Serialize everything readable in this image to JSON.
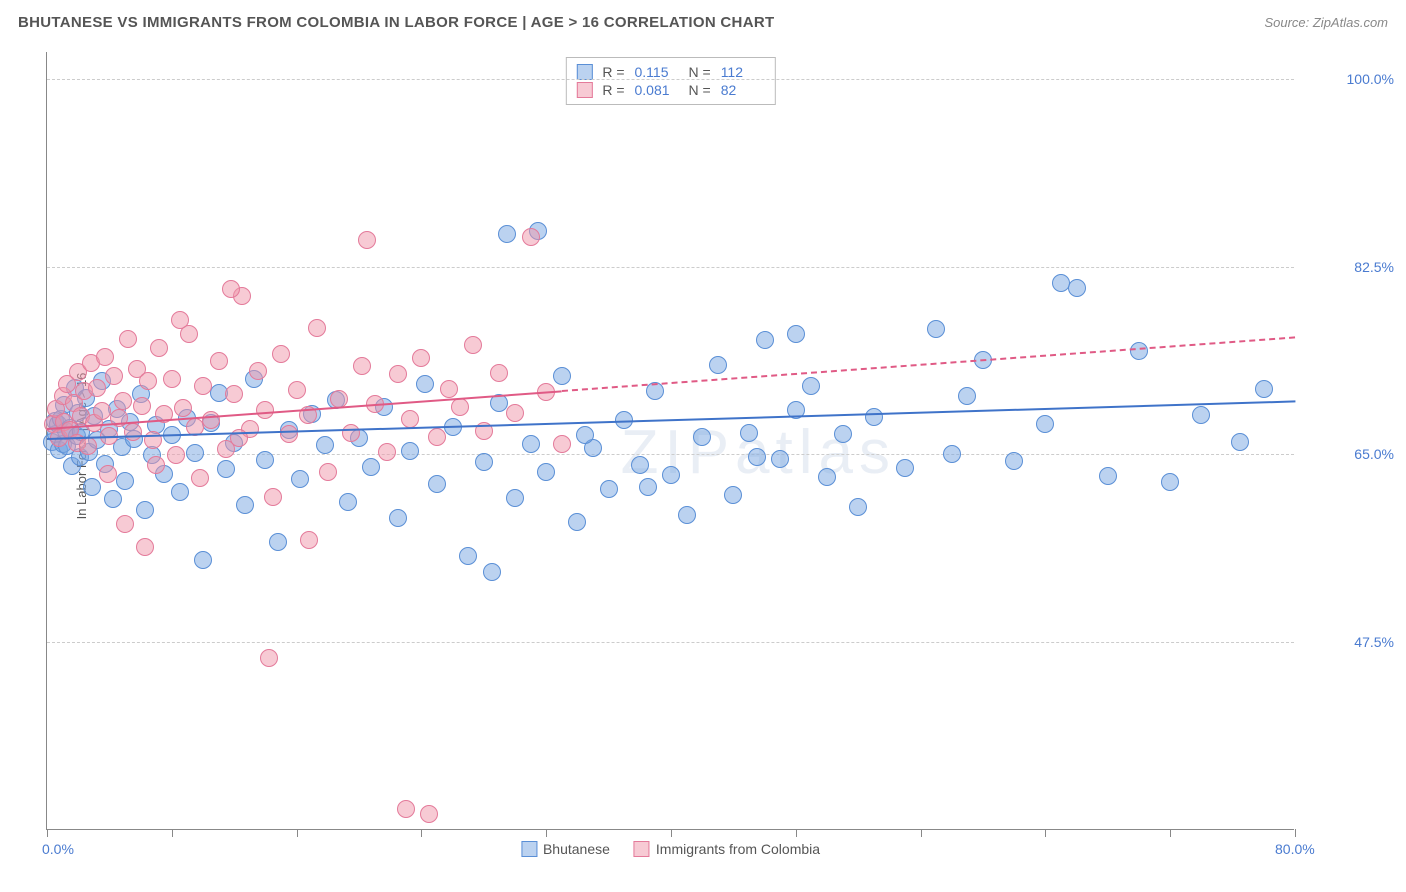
{
  "title": "BHUTANESE VS IMMIGRANTS FROM COLOMBIA IN LABOR FORCE | AGE > 16 CORRELATION CHART",
  "source": "Source: ZipAtlas.com",
  "watermark": "ZIPatlas",
  "ylabel": "In Labor Force | Age > 16",
  "chart": {
    "type": "scatter",
    "background_color": "#ffffff",
    "grid_color": "#cccccc",
    "axis_color": "#888888",
    "label_color": "#4a7bd0",
    "xlim": [
      0,
      80
    ],
    "ylim": [
      30,
      102.5
    ],
    "x_ticks": [
      0,
      8,
      16,
      24,
      32,
      40,
      48,
      56,
      64,
      72,
      80
    ],
    "y_gridlines": [
      47.5,
      65.0,
      82.5,
      100.0
    ],
    "y_tick_labels": [
      "47.5%",
      "65.0%",
      "82.5%",
      "100.0%"
    ],
    "x_axis_labels": {
      "left": "0.0%",
      "right": "80.0%",
      "right_pos": 80
    },
    "point_radius": 9,
    "point_opacity": 0.55,
    "series": [
      {
        "name": "Bhutanese",
        "color_fill": "rgba(120,165,225,0.5)",
        "color_stroke": "#5a8fd6",
        "R": "0.115",
        "N": "112",
        "trend": {
          "x1": 0,
          "y1": 66.5,
          "x2": 80,
          "y2": 70.0,
          "solid_until_x": 80,
          "color": "#3f73c9"
        },
        "points": [
          [
            0.3,
            66.2
          ],
          [
            0.5,
            68.1
          ],
          [
            0.6,
            66.9
          ],
          [
            0.7,
            67.8
          ],
          [
            0.8,
            65.4
          ],
          [
            0.9,
            68.3
          ],
          [
            1.0,
            66.0
          ],
          [
            1.1,
            69.6
          ],
          [
            1.2,
            67.2
          ],
          [
            1.3,
            65.8
          ],
          [
            1.5,
            67.5
          ],
          [
            1.6,
            63.9
          ],
          [
            1.8,
            71.2
          ],
          [
            1.9,
            66.7
          ],
          [
            2.0,
            68.9
          ],
          [
            2.1,
            64.8
          ],
          [
            2.2,
            67.1
          ],
          [
            2.5,
            70.3
          ],
          [
            2.7,
            65.2
          ],
          [
            2.9,
            62.0
          ],
          [
            3.0,
            68.6
          ],
          [
            3.2,
            66.3
          ],
          [
            3.5,
            71.8
          ],
          [
            3.7,
            64.1
          ],
          [
            4.0,
            67.4
          ],
          [
            4.2,
            60.8
          ],
          [
            4.5,
            69.2
          ],
          [
            4.8,
            65.7
          ],
          [
            5.0,
            62.5
          ],
          [
            5.3,
            68.0
          ],
          [
            5.6,
            66.4
          ],
          [
            6.0,
            70.6
          ],
          [
            6.3,
            59.8
          ],
          [
            6.7,
            64.9
          ],
          [
            7.0,
            67.7
          ],
          [
            7.5,
            63.2
          ],
          [
            8.0,
            66.8
          ],
          [
            8.5,
            61.5
          ],
          [
            9.0,
            68.4
          ],
          [
            9.5,
            65.1
          ],
          [
            10.0,
            55.2
          ],
          [
            10.5,
            67.9
          ],
          [
            11.0,
            70.7
          ],
          [
            11.5,
            63.6
          ],
          [
            12.0,
            66.1
          ],
          [
            12.7,
            60.3
          ],
          [
            13.3,
            72.0
          ],
          [
            14.0,
            64.5
          ],
          [
            14.8,
            56.8
          ],
          [
            15.5,
            67.3
          ],
          [
            16.2,
            62.7
          ],
          [
            17.0,
            68.8
          ],
          [
            17.8,
            65.9
          ],
          [
            18.5,
            70.1
          ],
          [
            19.3,
            60.6
          ],
          [
            20.0,
            66.5
          ],
          [
            20.8,
            63.8
          ],
          [
            21.6,
            69.4
          ],
          [
            22.5,
            59.1
          ],
          [
            23.3,
            65.3
          ],
          [
            24.2,
            71.6
          ],
          [
            25.0,
            62.2
          ],
          [
            26.0,
            67.6
          ],
          [
            27.0,
            55.5
          ],
          [
            28.0,
            64.3
          ],
          [
            29.0,
            69.8
          ],
          [
            29.5,
            85.5
          ],
          [
            30.0,
            60.9
          ],
          [
            31.0,
            66.0
          ],
          [
            32.0,
            63.4
          ],
          [
            33.0,
            72.3
          ],
          [
            34.0,
            58.7
          ],
          [
            35.0,
            65.6
          ],
          [
            36.0,
            61.8
          ],
          [
            37.0,
            68.2
          ],
          [
            38.0,
            64.0
          ],
          [
            39.0,
            70.9
          ],
          [
            40.0,
            63.1
          ],
          [
            41.0,
            59.4
          ],
          [
            42.0,
            66.6
          ],
          [
            43.0,
            73.3
          ],
          [
            44.0,
            61.2
          ],
          [
            45.0,
            67.0
          ],
          [
            46.0,
            75.7
          ],
          [
            47.0,
            64.6
          ],
          [
            48.0,
            69.1
          ],
          [
            49.0,
            71.4
          ],
          [
            50.0,
            62.9
          ],
          [
            51.0,
            66.9
          ],
          [
            52.0,
            60.1
          ],
          [
            53.0,
            68.5
          ],
          [
            55.0,
            63.7
          ],
          [
            57.0,
            76.7
          ],
          [
            58.0,
            65.0
          ],
          [
            59.0,
            70.4
          ],
          [
            60.0,
            73.8
          ],
          [
            62.0,
            64.4
          ],
          [
            64.0,
            67.8
          ],
          [
            66.0,
            80.5
          ],
          [
            68.0,
            63.0
          ],
          [
            70.0,
            74.6
          ],
          [
            72.0,
            62.4
          ],
          [
            74.0,
            68.7
          ],
          [
            76.5,
            66.2
          ],
          [
            78.0,
            71.1
          ],
          [
            48.0,
            76.2
          ],
          [
            28.5,
            54.0
          ],
          [
            45.5,
            64.8
          ],
          [
            31.5,
            85.8
          ],
          [
            65.0,
            81.0
          ],
          [
            34.5,
            66.8
          ],
          [
            38.5,
            62.0
          ]
        ]
      },
      {
        "name": "Immigrants from Colombia",
        "color_fill": "rgba(240,150,170,0.5)",
        "color_stroke": "#e47a9a",
        "R": "0.081",
        "N": "82",
        "trend": {
          "x1": 0,
          "y1": 67.5,
          "x2": 80,
          "y2": 76.0,
          "solid_until_x": 33,
          "color": "#e05a85"
        },
        "points": [
          [
            0.4,
            67.8
          ],
          [
            0.6,
            69.2
          ],
          [
            0.8,
            66.5
          ],
          [
            1.0,
            70.4
          ],
          [
            1.1,
            68.0
          ],
          [
            1.3,
            71.6
          ],
          [
            1.5,
            67.3
          ],
          [
            1.7,
            69.8
          ],
          [
            1.9,
            66.1
          ],
          [
            2.0,
            72.7
          ],
          [
            2.2,
            68.6
          ],
          [
            2.4,
            70.9
          ],
          [
            2.6,
            65.8
          ],
          [
            2.8,
            73.5
          ],
          [
            3.0,
            67.9
          ],
          [
            3.2,
            71.2
          ],
          [
            3.5,
            69.0
          ],
          [
            3.7,
            74.1
          ],
          [
            4.0,
            66.7
          ],
          [
            4.3,
            72.3
          ],
          [
            4.6,
            68.4
          ],
          [
            4.9,
            70.0
          ],
          [
            5.2,
            75.8
          ],
          [
            5.5,
            67.1
          ],
          [
            5.8,
            73.0
          ],
          [
            6.1,
            69.5
          ],
          [
            6.5,
            71.8
          ],
          [
            6.8,
            66.3
          ],
          [
            7.2,
            74.9
          ],
          [
            7.5,
            68.8
          ],
          [
            8.0,
            72.0
          ],
          [
            8.3,
            64.9
          ],
          [
            8.7,
            69.3
          ],
          [
            9.1,
            76.2
          ],
          [
            9.5,
            67.6
          ],
          [
            10.0,
            71.4
          ],
          [
            10.5,
            68.2
          ],
          [
            11.0,
            73.7
          ],
          [
            11.5,
            65.5
          ],
          [
            12.0,
            70.6
          ],
          [
            12.5,
            79.8
          ],
          [
            13.0,
            67.4
          ],
          [
            13.5,
            72.8
          ],
          [
            14.0,
            69.1
          ],
          [
            14.5,
            61.0
          ],
          [
            15.0,
            74.4
          ],
          [
            15.5,
            66.9
          ],
          [
            16.0,
            71.0
          ],
          [
            16.7,
            68.7
          ],
          [
            17.3,
            76.8
          ],
          [
            18.0,
            63.4
          ],
          [
            18.7,
            70.2
          ],
          [
            19.5,
            67.0
          ],
          [
            20.2,
            73.2
          ],
          [
            21.0,
            69.7
          ],
          [
            21.8,
            65.2
          ],
          [
            22.5,
            72.5
          ],
          [
            23.3,
            68.3
          ],
          [
            24.0,
            74.0
          ],
          [
            25.0,
            66.6
          ],
          [
            25.8,
            71.1
          ],
          [
            26.5,
            69.4
          ],
          [
            27.3,
            75.2
          ],
          [
            28.0,
            67.2
          ],
          [
            29.0,
            72.6
          ],
          [
            30.0,
            68.9
          ],
          [
            31.0,
            85.3
          ],
          [
            32.0,
            70.8
          ],
          [
            33.0,
            66.0
          ],
          [
            16.8,
            57.0
          ],
          [
            14.2,
            46.0
          ],
          [
            5.0,
            58.5
          ],
          [
            8.5,
            77.5
          ],
          [
            3.9,
            63.2
          ],
          [
            6.3,
            56.4
          ],
          [
            20.5,
            85.0
          ],
          [
            24.5,
            31.5
          ],
          [
            23.0,
            32.0
          ],
          [
            11.8,
            80.4
          ],
          [
            9.8,
            62.8
          ],
          [
            7.0,
            64.0
          ],
          [
            12.3,
            66.5
          ]
        ]
      }
    ]
  },
  "legend": {
    "series1_label": "Bhutanese",
    "series2_label": "Immigrants from Colombia"
  }
}
